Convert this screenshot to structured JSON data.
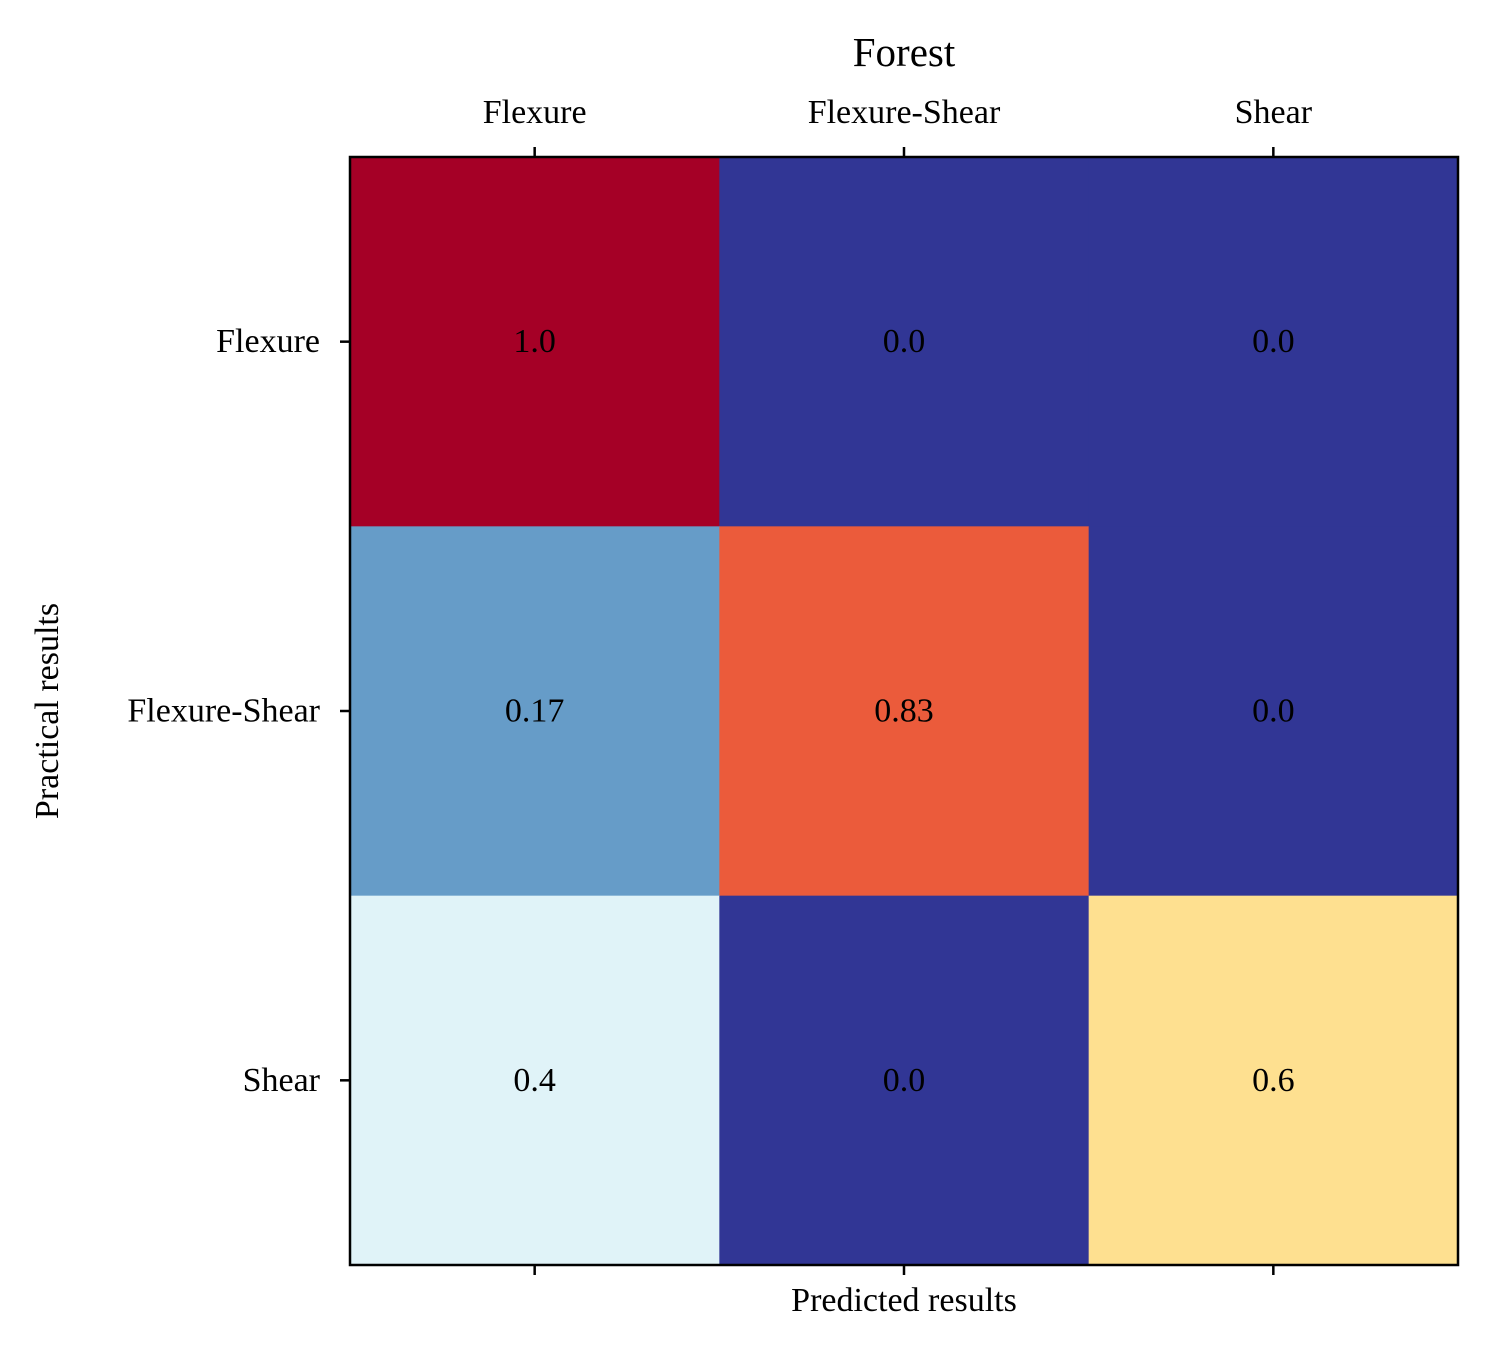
{
  "chart_data": {
    "type": "heatmap",
    "title": "Forest",
    "xlabel": "Predicted results",
    "ylabel": "Practical results",
    "x_categories": [
      "Flexure",
      "Flexure-Shear",
      "Shear"
    ],
    "y_categories": [
      "Flexure",
      "Flexure-Shear",
      "Shear"
    ],
    "values": [
      [
        1.0,
        0.0,
        0.0
      ],
      [
        0.17,
        0.83,
        0.0
      ],
      [
        0.4,
        0.0,
        0.6
      ]
    ],
    "cell_labels": [
      [
        "1.0",
        "0.0",
        "0.0"
      ],
      [
        "0.17",
        "0.83",
        "0.0"
      ],
      [
        "0.4",
        "0.0",
        "0.6"
      ]
    ],
    "value_range": [
      0,
      1
    ],
    "colormap": "RdYlBu_r",
    "x_tick_position": "top",
    "grid": false,
    "colorbar": false,
    "colors": {
      "low": "#313695",
      "high": "#a50026",
      "text": "#000000",
      "frame": "#000000"
    }
  }
}
